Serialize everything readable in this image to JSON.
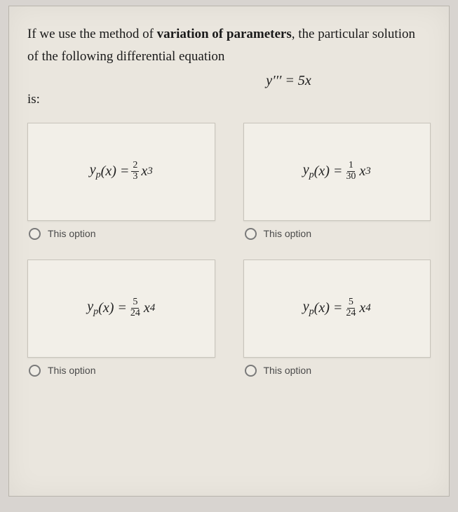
{
  "question": {
    "line1_pre": "If we use the method of ",
    "line1_bold": "variation of parameters",
    "line1_post": ", the particular solution",
    "line2": "of the following differential equation",
    "equation": "y′′′ = 5x",
    "is": "is:"
  },
  "options": [
    {
      "yp": "yₚ(x) = ",
      "num": "2",
      "den": "3",
      "tail": "x³",
      "label": "This option"
    },
    {
      "yp": "yₚ(x) = ",
      "num": "1",
      "den": "30",
      "tail": "x³",
      "label": "This option"
    },
    {
      "yp": "yₚ(x) = ",
      "num": "5",
      "den": "24",
      "tail": "x⁴",
      "label": "This option"
    },
    {
      "yp": "yₚ(x) = ",
      "num": "5",
      "den": "24",
      "tail": "x⁴",
      "label": "This option"
    }
  ],
  "style": {
    "page_bg": "#eae6de",
    "box_bg": "#f2efe8",
    "border": "#c8c4bb",
    "text": "#1a1a1a",
    "option_text": "#4a4a4a",
    "body_bg": "#d8d4d0"
  }
}
